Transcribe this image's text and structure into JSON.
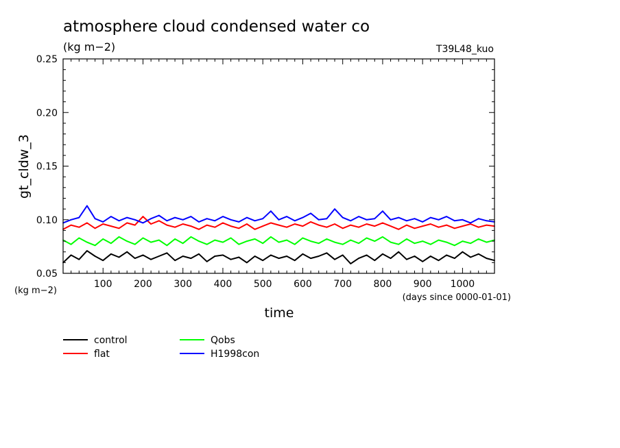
{
  "title": "atmosphere cloud condensed water co",
  "units": "(kg m−2)",
  "experiment": "T39L48_kuo",
  "y_unit_label": "(kg m−2)",
  "x_unit_label": "(days since 0000-01-01)",
  "chart_data": {
    "type": "line",
    "title": "atmosphere cloud condensed water co",
    "xlabel": "time",
    "ylabel": "gt_cldw_3",
    "xlim": [
      0,
      1080
    ],
    "ylim": [
      0.05,
      0.25
    ],
    "x_ticks": [
      100,
      200,
      300,
      400,
      500,
      600,
      700,
      800,
      900,
      1000
    ],
    "x_tick_labels": [
      "100",
      "200",
      "300",
      "400",
      "500",
      "600",
      "700",
      "800",
      "900",
      "1000"
    ],
    "y_ticks": [
      0.05,
      0.1,
      0.15,
      0.2,
      0.25
    ],
    "y_tick_labels": [
      "0.05",
      "0.10",
      "0.15",
      "0.20",
      "0.25"
    ],
    "legend_position": "bottom",
    "grid": false,
    "x": [
      0,
      20,
      40,
      60,
      80,
      100,
      120,
      140,
      160,
      180,
      200,
      220,
      240,
      260,
      280,
      300,
      320,
      340,
      360,
      380,
      400,
      420,
      440,
      460,
      480,
      500,
      520,
      540,
      560,
      580,
      600,
      620,
      640,
      660,
      680,
      700,
      720,
      740,
      760,
      780,
      800,
      820,
      840,
      860,
      880,
      900,
      920,
      940,
      960,
      980,
      1000,
      1020,
      1040,
      1060,
      1080
    ],
    "series": [
      {
        "name": "control",
        "color": "#000000",
        "values": [
          0.06,
          0.067,
          0.063,
          0.071,
          0.066,
          0.062,
          0.068,
          0.065,
          0.07,
          0.064,
          0.067,
          0.063,
          0.066,
          0.069,
          0.062,
          0.066,
          0.064,
          0.068,
          0.061,
          0.066,
          0.067,
          0.063,
          0.065,
          0.06,
          0.066,
          0.062,
          0.067,
          0.064,
          0.066,
          0.062,
          0.068,
          0.064,
          0.066,
          0.069,
          0.063,
          0.067,
          0.059,
          0.064,
          0.067,
          0.062,
          0.068,
          0.064,
          0.07,
          0.063,
          0.066,
          0.061,
          0.066,
          0.062,
          0.067,
          0.064,
          0.07,
          0.065,
          0.068,
          0.064,
          0.062
        ]
      },
      {
        "name": "flat",
        "color": "#ff0000",
        "values": [
          0.091,
          0.095,
          0.093,
          0.097,
          0.092,
          0.096,
          0.094,
          0.092,
          0.097,
          0.095,
          0.103,
          0.096,
          0.099,
          0.095,
          0.093,
          0.096,
          0.094,
          0.091,
          0.095,
          0.093,
          0.097,
          0.094,
          0.092,
          0.096,
          0.091,
          0.094,
          0.097,
          0.095,
          0.093,
          0.096,
          0.094,
          0.098,
          0.095,
          0.093,
          0.096,
          0.092,
          0.095,
          0.093,
          0.096,
          0.094,
          0.097,
          0.094,
          0.091,
          0.095,
          0.092,
          0.094,
          0.096,
          0.093,
          0.095,
          0.092,
          0.094,
          0.096,
          0.093,
          0.095,
          0.094
        ]
      },
      {
        "name": "Qobs",
        "color": "#00ff00",
        "values": [
          0.081,
          0.077,
          0.083,
          0.079,
          0.076,
          0.082,
          0.078,
          0.084,
          0.08,
          0.077,
          0.083,
          0.079,
          0.081,
          0.076,
          0.082,
          0.078,
          0.084,
          0.08,
          0.077,
          0.081,
          0.079,
          0.083,
          0.077,
          0.08,
          0.082,
          0.078,
          0.084,
          0.079,
          0.081,
          0.077,
          0.083,
          0.08,
          0.078,
          0.082,
          0.079,
          0.077,
          0.081,
          0.078,
          0.083,
          0.08,
          0.084,
          0.079,
          0.077,
          0.082,
          0.078,
          0.08,
          0.077,
          0.081,
          0.079,
          0.076,
          0.08,
          0.078,
          0.082,
          0.079,
          0.081
        ]
      },
      {
        "name": "H1998con",
        "color": "#0000ff",
        "values": [
          0.097,
          0.1,
          0.102,
          0.113,
          0.101,
          0.098,
          0.103,
          0.099,
          0.102,
          0.1,
          0.097,
          0.101,
          0.104,
          0.099,
          0.102,
          0.1,
          0.103,
          0.098,
          0.101,
          0.099,
          0.103,
          0.1,
          0.098,
          0.102,
          0.099,
          0.101,
          0.108,
          0.1,
          0.103,
          0.099,
          0.102,
          0.106,
          0.1,
          0.101,
          0.11,
          0.102,
          0.099,
          0.103,
          0.1,
          0.101,
          0.108,
          0.1,
          0.102,
          0.099,
          0.101,
          0.098,
          0.102,
          0.1,
          0.103,
          0.099,
          0.1,
          0.097,
          0.101,
          0.099,
          0.098
        ]
      }
    ]
  }
}
